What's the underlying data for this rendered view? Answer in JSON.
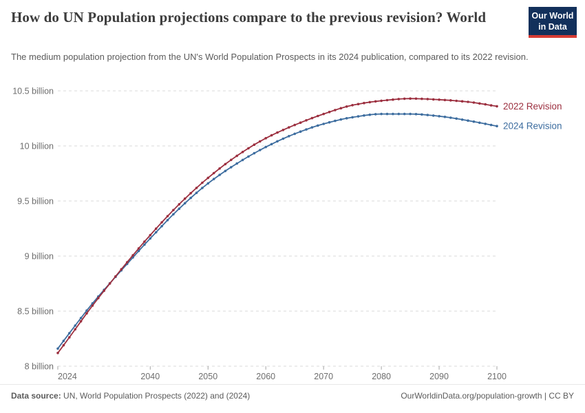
{
  "header": {
    "title": "How do UN Population projections compare to the previous revision? World",
    "subtitle": "The medium population projection from the UN's World Population Prospects in its 2024 publication, compared to its 2022 revision.",
    "logo": {
      "line1": "Our World",
      "line2": "in Data",
      "bg_color": "#12305b",
      "accent_color": "#d73c34"
    }
  },
  "footer": {
    "source_label": "Data source:",
    "source_text": "UN, World Population Prospects (2022) and (2024)",
    "right_text": "OurWorldinData.org/population-growth | CC BY"
  },
  "chart_data": {
    "type": "line",
    "title": "How do UN Population projections compare to the previous revision? World",
    "unit": "billion people",
    "x_range": [
      2024,
      2100
    ],
    "y_range": [
      8,
      10.5
    ],
    "grid": "dashed-horizontal",
    "legend_position": "line-end-labels",
    "marker_interval_years": 1,
    "x_ticks": [
      2024,
      2040,
      2050,
      2060,
      2070,
      2080,
      2090,
      2100
    ],
    "y_ticks": [
      {
        "value": 8,
        "label": "8 billion"
      },
      {
        "value": 8.5,
        "label": "8.5 billion"
      },
      {
        "value": 9,
        "label": "9 billion"
      },
      {
        "value": 9.5,
        "label": "9.5 billion"
      },
      {
        "value": 10,
        "label": "10 billion"
      },
      {
        "value": 10.5,
        "label": "10.5 billion"
      }
    ],
    "grid_color": "#d9d9d9",
    "tick_color": "#a6a6a6",
    "axis_text_color": "#6e6e6e",
    "series": [
      {
        "name": "2022 Revision",
        "color": "#9c2f3f",
        "points": [
          [
            2024,
            8.12
          ],
          [
            2025,
            8.19
          ],
          [
            2030,
            8.55
          ],
          [
            2035,
            8.88
          ],
          [
            2040,
            9.19
          ],
          [
            2045,
            9.47
          ],
          [
            2050,
            9.71
          ],
          [
            2055,
            9.91
          ],
          [
            2060,
            10.07
          ],
          [
            2065,
            10.19
          ],
          [
            2070,
            10.29
          ],
          [
            2075,
            10.37
          ],
          [
            2080,
            10.41
          ],
          [
            2085,
            10.43
          ],
          [
            2090,
            10.42
          ],
          [
            2095,
            10.4
          ],
          [
            2100,
            10.36
          ]
        ]
      },
      {
        "name": "2024 Revision",
        "color": "#3d6d9f",
        "points": [
          [
            2024,
            8.16
          ],
          [
            2025,
            8.23
          ],
          [
            2030,
            8.57
          ],
          [
            2035,
            8.87
          ],
          [
            2040,
            9.16
          ],
          [
            2045,
            9.43
          ],
          [
            2050,
            9.66
          ],
          [
            2055,
            9.84
          ],
          [
            2060,
            9.99
          ],
          [
            2065,
            10.11
          ],
          [
            2070,
            10.2
          ],
          [
            2075,
            10.26
          ],
          [
            2080,
            10.29
          ],
          [
            2085,
            10.29
          ],
          [
            2090,
            10.27
          ],
          [
            2095,
            10.23
          ],
          [
            2100,
            10.18
          ]
        ]
      }
    ]
  }
}
